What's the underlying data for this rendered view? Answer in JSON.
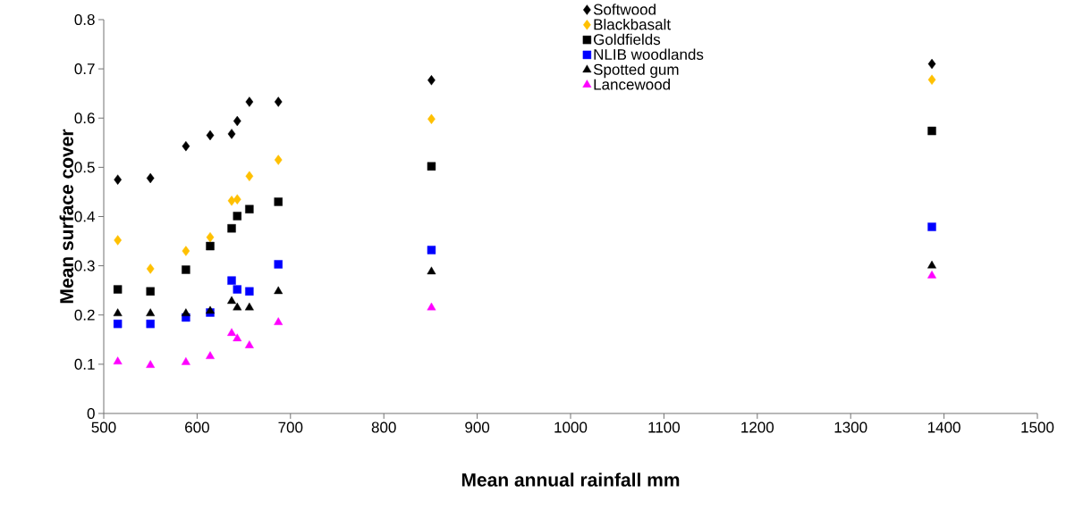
{
  "chart_data": {
    "type": "scatter",
    "xlabel": "Mean annual rainfall mm",
    "ylabel": "Mean surface cover",
    "x": [
      515,
      550,
      588,
      614,
      637,
      643,
      656,
      687,
      851,
      1387
    ],
    "series": [
      {
        "name": "Softwood",
        "color": "#000000",
        "marker": "diamond",
        "values": [
          0.475,
          0.478,
          0.543,
          0.565,
          0.568,
          0.594,
          0.633,
          0.633,
          0.677,
          0.71
        ]
      },
      {
        "name": "Blackbasalt",
        "color": "#ffc000",
        "marker": "diamond",
        "values": [
          0.352,
          0.294,
          0.33,
          0.358,
          0.432,
          0.435,
          0.482,
          0.515,
          0.598,
          0.678
        ]
      },
      {
        "name": "Goldfields",
        "color": "#000000",
        "marker": "square",
        "values": [
          0.252,
          0.248,
          0.292,
          0.34,
          0.376,
          0.401,
          0.415,
          0.43,
          0.502,
          0.574
        ]
      },
      {
        "name": "NLIB woodlands",
        "color": "#0000ff",
        "marker": "square",
        "values": [
          0.182,
          0.182,
          0.195,
          0.205,
          0.27,
          0.252,
          0.248,
          0.303,
          0.332,
          0.379
        ]
      },
      {
        "name": "Spotted gum",
        "color": "#000000",
        "marker": "triangle",
        "values": [
          0.203,
          0.203,
          0.203,
          0.208,
          0.228,
          0.215,
          0.215,
          0.248,
          0.288,
          0.3
        ]
      },
      {
        "name": "Lancewood",
        "color": "#ff00ff",
        "marker": "triangle",
        "values": [
          0.105,
          0.098,
          0.104,
          0.116,
          0.163,
          0.152,
          0.138,
          0.185,
          0.215,
          0.28
        ]
      }
    ],
    "xlim": [
      500,
      1500
    ],
    "xticks": [
      500,
      600,
      700,
      800,
      900,
      1000,
      1100,
      1200,
      1300,
      1400,
      1500
    ],
    "ylim": [
      0,
      0.8
    ],
    "yticks": [
      0,
      0.1,
      0.2,
      0.3,
      0.4,
      0.5,
      0.6,
      0.7,
      0.8
    ],
    "legend": "top",
    "grid": false
  }
}
